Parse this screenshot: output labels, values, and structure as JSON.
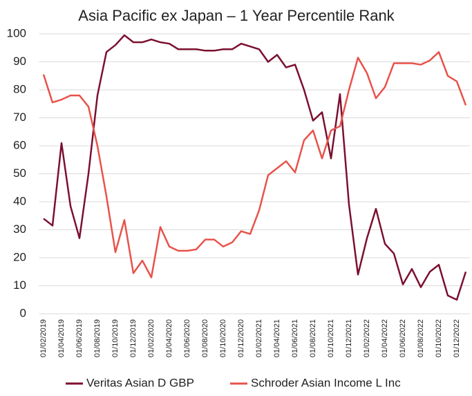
{
  "chart_data": {
    "type": "line",
    "title": "Asia Pacific ex Japan – 1 Year Percentile Rank",
    "categories": [
      "01/02/2019",
      null,
      "01/04/2019",
      null,
      "01/06/2019",
      null,
      "01/08/2019",
      null,
      "01/10/2019",
      null,
      "01/12/2019",
      null,
      "01/02/2020",
      null,
      "01/04/2020",
      null,
      "01/06/2020",
      null,
      "01/08/2020",
      null,
      "01/10/2020",
      null,
      "01/12/2020",
      null,
      "01/02/2021",
      null,
      "01/04/2021",
      null,
      "01/06/2021",
      null,
      "01/08/2021",
      null,
      "01/10/2021",
      null,
      "01/12/2021",
      null,
      "01/02/2022",
      null,
      "01/04/2022",
      null,
      "01/06/2022",
      null,
      "01/08/2022",
      null,
      "01/10/2022",
      null,
      "01/12/2022",
      null
    ],
    "series": [
      {
        "name": "Veritas Asian D GBP",
        "color": "#7b0f2f",
        "values": [
          34,
          31.5,
          61,
          38.5,
          27,
          50,
          78,
          93.5,
          96,
          99.5,
          97,
          97,
          98,
          97,
          96.5,
          94.5,
          94.5,
          94.5,
          94,
          94,
          94.5,
          94.5,
          96.5,
          95.5,
          94.5,
          90,
          92.5,
          88,
          89,
          80,
          69,
          72,
          55.5,
          78.5,
          39,
          14,
          27,
          37.5,
          25,
          21.5,
          10.5,
          16,
          9.5,
          15,
          17.5,
          6.5,
          5,
          15
        ]
      },
      {
        "name": "Schroder Asian Income L Inc",
        "color": "#e8524a",
        "values": [
          85.5,
          75.5,
          76.5,
          78,
          78,
          74,
          60,
          42,
          22,
          33.5,
          14.5,
          19,
          13,
          31,
          24,
          22.5,
          22.5,
          23,
          26.5,
          26.5,
          24,
          25.5,
          29.5,
          28.5,
          37,
          49.5,
          52,
          54.5,
          50.5,
          62,
          65.5,
          55.5,
          65.5,
          67,
          80,
          91.5,
          86,
          77,
          81,
          89.5,
          89.5,
          89.5,
          89,
          90.5,
          93.5,
          85,
          83,
          74.5
        ]
      }
    ],
    "ylim": [
      0,
      100
    ],
    "yticks": [
      0,
      10,
      20,
      30,
      40,
      50,
      60,
      70,
      80,
      90,
      100
    ],
    "grid": true,
    "legend": "bottom"
  }
}
